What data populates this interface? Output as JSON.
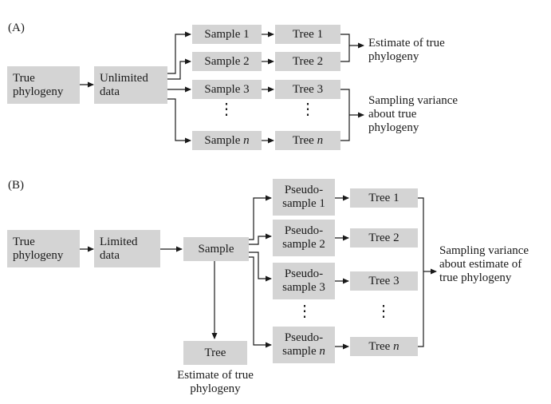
{
  "panel_a": {
    "label": "(A)",
    "true_phylogeny": "True phylogeny",
    "data": "Unlimited data",
    "samples": [
      "Sample 1",
      "Sample 2",
      "Sample 3",
      "Sample"
    ],
    "sample_n_suffix": "n",
    "trees": [
      "Tree 1",
      "Tree 2",
      "Tree 3",
      "Tree"
    ],
    "tree_n_suffix": "n",
    "estimate_text": "Estimate of true phylogeny",
    "variance_text": "Sampling variance about true phylogeny",
    "ellipsis": "⋮"
  },
  "panel_b": {
    "label": "(B)",
    "true_phylogeny": "True phylogeny",
    "data": "Limited data",
    "sample": "Sample",
    "tree": "Tree",
    "estimate_text": "Estimate of true phylogeny",
    "pseudo_samples": [
      "Pseudo-sample 1",
      "Pseudo-sample 2",
      "Pseudo-sample 3",
      "Pseudo-sample"
    ],
    "pseudo_n_suffix": "n",
    "trees": [
      "Tree 1",
      "Tree 2",
      "Tree 3",
      "Tree"
    ],
    "tree_n_suffix": "n",
    "variance_text": "Sampling variance about estimate of true phylogeny",
    "ellipsis": "⋮"
  }
}
